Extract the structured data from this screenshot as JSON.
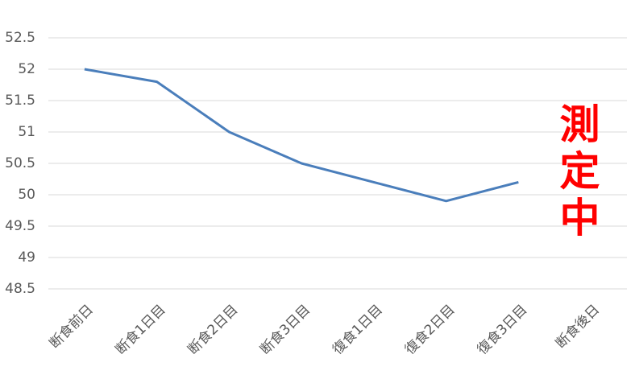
{
  "chart_data": {
    "type": "line",
    "categories": [
      "断食前日",
      "断食1日目",
      "断食2日目",
      "断食3日目",
      "復食1日目",
      "復食2日目",
      "復食3日目",
      "断食後日"
    ],
    "series": [
      {
        "color": "#4a7ebb",
        "values": [
          52,
          51.8,
          51,
          50.5,
          50.2,
          49.9,
          50.2,
          null
        ]
      }
    ],
    "ylim": [
      48.5,
      52.5
    ],
    "yticks": [
      48.5,
      49,
      49.5,
      50,
      50.5,
      51,
      51.5,
      52,
      52.5
    ],
    "grid": true,
    "annotation": "測定中",
    "annotation_color": "#ff0000"
  }
}
